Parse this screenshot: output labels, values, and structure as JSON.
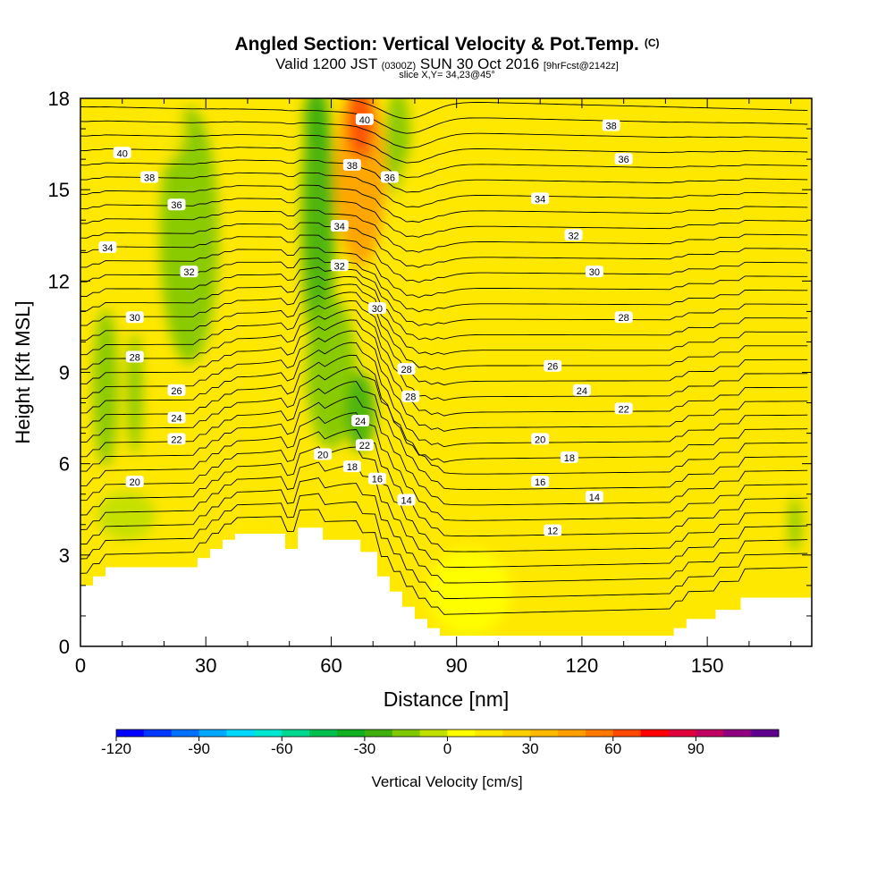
{
  "header": {
    "title": "Angled Section: Vertical Velocity & Pot.Temp.",
    "title_mark": "(C)",
    "valid_prefix": "Valid 1200 JST",
    "utc": "(0300Z)",
    "valid_date": "SUN 30 Oct 2016",
    "forecast": "[9hrFcst@2142z]",
    "slice": "slice X,Y= 34,23@45°"
  },
  "chart_data": {
    "type": "heatmap",
    "xlabel": "Distance [nm]",
    "ylabel": "Height [Kft MSL]",
    "xlim": [
      0,
      175
    ],
    "ylim": [
      0,
      18
    ],
    "x_ticks": [
      0,
      30,
      60,
      90,
      120,
      150
    ],
    "y_ticks": [
      0,
      3,
      6,
      9,
      12,
      15,
      18
    ],
    "colorbar": {
      "label": "Vertical Velocity [cm/s]",
      "min": -120,
      "max": 110,
      "step": 10,
      "tick_values": [
        -120,
        -90,
        -60,
        -30,
        0,
        30,
        60,
        90
      ],
      "colors": [
        "#0000ff",
        "#0037ff",
        "#0070ff",
        "#00a8ff",
        "#00d8ff",
        "#00e8d0",
        "#00d890",
        "#00c050",
        "#10b020",
        "#40b010",
        "#80c800",
        "#c0e000",
        "#ffff00",
        "#ffe800",
        "#ffd000",
        "#ffb800",
        "#ffa000",
        "#ff7800",
        "#ff4800",
        "#ff0000",
        "#e0003c",
        "#c00060",
        "#900080",
        "#600090"
      ]
    },
    "velocity_features": [
      {
        "x": 6,
        "y": 8.5,
        "rx": 3,
        "ry": 2.6,
        "value": -15
      },
      {
        "x": 13,
        "y": 8.3,
        "rx": 1.8,
        "ry": 2,
        "value": -12
      },
      {
        "x": 26,
        "y": 13.5,
        "rx": 7,
        "ry": 4.2,
        "value": -15
      },
      {
        "x": 57,
        "y": 14,
        "rx": 4,
        "ry": 4.5,
        "value": -22
      },
      {
        "x": 56,
        "y": 17.3,
        "rx": 2.5,
        "ry": 1,
        "value": -30
      },
      {
        "x": 60,
        "y": 9,
        "rx": 6,
        "ry": 2.5,
        "value": -15
      },
      {
        "x": 67,
        "y": 7.7,
        "rx": 3.5,
        "ry": 1.3,
        "value": -30
      },
      {
        "x": 76,
        "y": 16.5,
        "rx": 3,
        "ry": 1.8,
        "value": -20
      },
      {
        "x": 11,
        "y": 4.3,
        "rx": 7,
        "ry": 0.8,
        "value": -10
      },
      {
        "x": 171,
        "y": 4,
        "rx": 1.5,
        "ry": 0.9,
        "value": -12
      },
      {
        "x": 67,
        "y": 15.5,
        "rx": 6,
        "ry": 3,
        "value": 40
      },
      {
        "x": 67,
        "y": 17.2,
        "rx": 3,
        "ry": 1.2,
        "value": 62
      },
      {
        "x": 19,
        "y": 17,
        "rx": 6,
        "ry": 1.2,
        "value": 18
      },
      {
        "x": 82,
        "y": 12.5,
        "rx": 8,
        "ry": 4,
        "value": 15
      },
      {
        "x": 40,
        "y": 3.8,
        "rx": 9,
        "ry": 1,
        "value": 15
      },
      {
        "x": 153,
        "y": 17.5,
        "rx": 20,
        "ry": 0.6,
        "value": 15
      },
      {
        "x": 93,
        "y": 1.8,
        "rx": 10,
        "ry": 1.4,
        "value": 8
      }
    ],
    "terrain": [
      [
        0,
        2
      ],
      [
        3,
        2
      ],
      [
        3,
        2.3
      ],
      [
        6,
        2.3
      ],
      [
        6,
        2.6
      ],
      [
        28,
        2.6
      ],
      [
        28,
        2.9
      ],
      [
        31,
        2.9
      ],
      [
        31,
        3.2
      ],
      [
        34,
        3.2
      ],
      [
        34,
        3.5
      ],
      [
        37,
        3.5
      ],
      [
        37,
        3.7
      ],
      [
        49,
        3.7
      ],
      [
        49,
        3.2
      ],
      [
        52,
        3.2
      ],
      [
        52,
        3.9
      ],
      [
        58,
        3.9
      ],
      [
        58,
        3.5
      ],
      [
        67,
        3.5
      ],
      [
        67,
        3.1
      ],
      [
        71,
        3.1
      ],
      [
        71,
        2.3
      ],
      [
        74,
        2.3
      ],
      [
        74,
        1.8
      ],
      [
        77,
        1.8
      ],
      [
        77,
        1.3
      ],
      [
        80,
        1.3
      ],
      [
        80,
        0.9
      ],
      [
        83,
        0.9
      ],
      [
        83,
        0.6
      ],
      [
        86,
        0.6
      ],
      [
        86,
        0.35
      ],
      [
        142,
        0.35
      ],
      [
        142,
        0.6
      ],
      [
        145,
        0.6
      ],
      [
        145,
        0.9
      ],
      [
        152,
        0.9
      ],
      [
        152,
        1.2
      ],
      [
        158,
        1.2
      ],
      [
        158,
        1.6
      ],
      [
        175,
        1.6
      ]
    ],
    "isentrope_labels": [
      {
        "text": "40",
        "x": 10,
        "y": 16.2
      },
      {
        "text": "38",
        "x": 16.5,
        "y": 15.4
      },
      {
        "text": "36",
        "x": 23,
        "y": 14.5
      },
      {
        "text": "34",
        "x": 6.5,
        "y": 13.1
      },
      {
        "text": "32",
        "x": 26,
        "y": 12.3
      },
      {
        "text": "30",
        "x": 13,
        "y": 10.8
      },
      {
        "text": "28",
        "x": 13,
        "y": 9.5
      },
      {
        "text": "26",
        "x": 23,
        "y": 8.4
      },
      {
        "text": "24",
        "x": 23,
        "y": 7.5
      },
      {
        "text": "22",
        "x": 23,
        "y": 6.8
      },
      {
        "text": "20",
        "x": 13,
        "y": 5.4
      },
      {
        "text": "40",
        "x": 68,
        "y": 17.3
      },
      {
        "text": "38",
        "x": 65,
        "y": 15.8
      },
      {
        "text": "36",
        "x": 74,
        "y": 15.4
      },
      {
        "text": "34",
        "x": 62,
        "y": 13.8
      },
      {
        "text": "32",
        "x": 62,
        "y": 12.5
      },
      {
        "text": "30",
        "x": 71,
        "y": 11.1
      },
      {
        "text": "28",
        "x": 78,
        "y": 9.1
      },
      {
        "text": "28",
        "x": 79,
        "y": 8.2
      },
      {
        "text": "24",
        "x": 67,
        "y": 7.4
      },
      {
        "text": "22",
        "x": 68,
        "y": 6.6
      },
      {
        "text": "20",
        "x": 58,
        "y": 6.3
      },
      {
        "text": "18",
        "x": 65,
        "y": 5.9
      },
      {
        "text": "16",
        "x": 71,
        "y": 5.5
      },
      {
        "text": "14",
        "x": 78,
        "y": 4.8
      },
      {
        "text": "38",
        "x": 127,
        "y": 17.1
      },
      {
        "text": "36",
        "x": 130,
        "y": 16.0
      },
      {
        "text": "34",
        "x": 110,
        "y": 14.7
      },
      {
        "text": "32",
        "x": 118,
        "y": 13.5
      },
      {
        "text": "30",
        "x": 123,
        "y": 12.3
      },
      {
        "text": "28",
        "x": 130,
        "y": 10.8
      },
      {
        "text": "26",
        "x": 113,
        "y": 9.2
      },
      {
        "text": "24",
        "x": 120,
        "y": 8.4
      },
      {
        "text": "22",
        "x": 130,
        "y": 7.8
      },
      {
        "text": "20",
        "x": 110,
        "y": 6.8
      },
      {
        "text": "18",
        "x": 117,
        "y": 6.2
      },
      {
        "text": "16",
        "x": 110,
        "y": 5.4
      },
      {
        "text": "14",
        "x": 123,
        "y": 4.9
      },
      {
        "text": "12",
        "x": 113,
        "y": 3.8
      }
    ]
  }
}
